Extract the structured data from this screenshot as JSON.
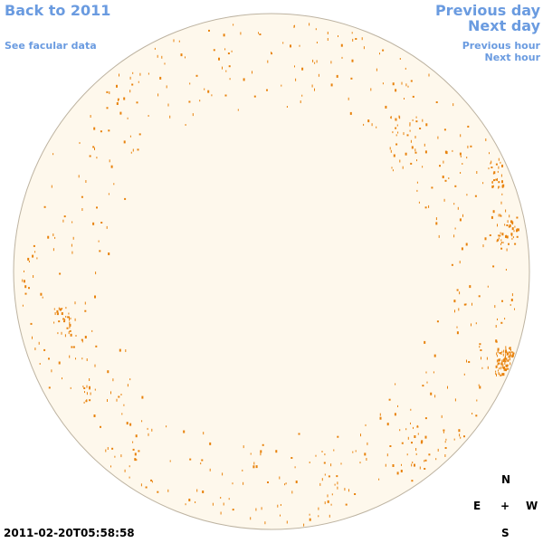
{
  "nav": {
    "back_label": "Back to 2011",
    "facular_label": "See facular data",
    "prev_day_label": "Previous day",
    "next_day_label": "Next day",
    "prev_hour_label": "Previous hour",
    "next_hour_label": "Next hour"
  },
  "compass": {
    "north": "N",
    "east": "E",
    "center": "+",
    "west": "W",
    "south": "S"
  },
  "timestamp": "2011-02-20T05:58:58",
  "colors": {
    "link": "#6a9be0",
    "disk_fill": "#fef8ec",
    "disk_edge": "#bdb3a1",
    "feature": "#e8820c"
  }
}
